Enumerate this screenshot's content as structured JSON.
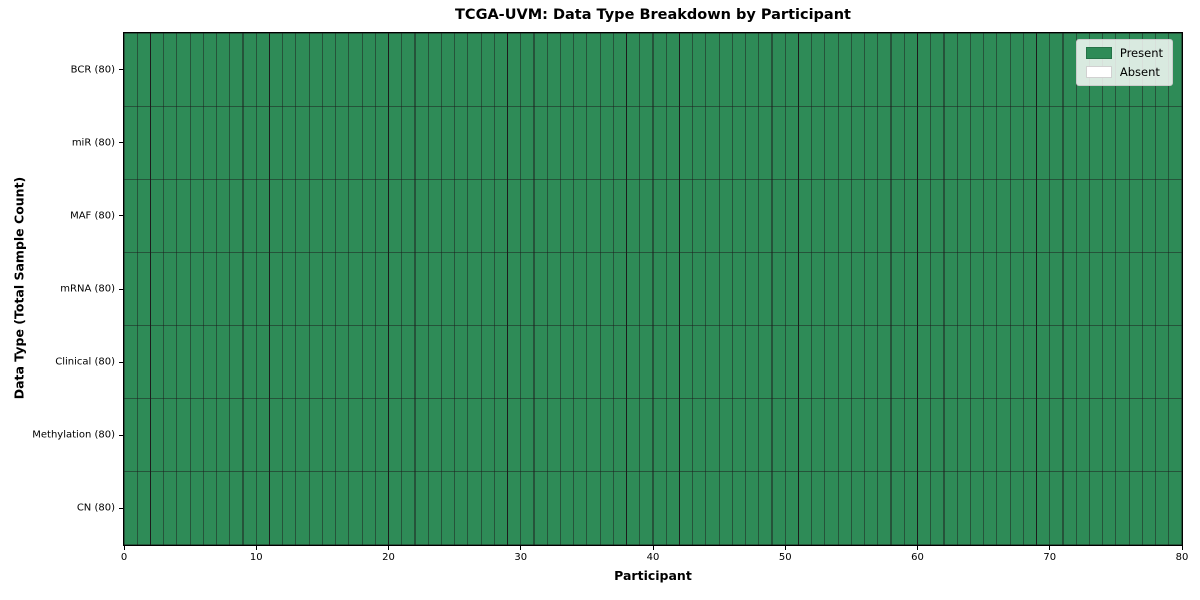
{
  "title": "TCGA-UVM: Data Type Breakdown by Participant",
  "chart_data": {
    "type": "heatmap",
    "title": "TCGA-UVM: Data Type Breakdown by Participant",
    "xlabel": "Participant",
    "ylabel": "Data Type (Total Sample Count)",
    "xlim": [
      0,
      80
    ],
    "x_ticks": [
      0,
      10,
      20,
      30,
      40,
      50,
      60,
      70,
      80
    ],
    "n_participants": 80,
    "rows": [
      {
        "label": "BCR (80)",
        "data_type": "BCR",
        "total_samples": 80,
        "present_count": 80
      },
      {
        "label": "miR (80)",
        "data_type": "miR",
        "total_samples": 80,
        "present_count": 80
      },
      {
        "label": "MAF (80)",
        "data_type": "MAF",
        "total_samples": 80,
        "present_count": 80
      },
      {
        "label": "mRNA (80)",
        "data_type": "mRNA",
        "total_samples": 80,
        "present_count": 80
      },
      {
        "label": "Clinical (80)",
        "data_type": "Clinical",
        "total_samples": 80,
        "present_count": 80
      },
      {
        "label": "Methylation (80)",
        "data_type": "Methylation",
        "total_samples": 80,
        "present_count": 80
      },
      {
        "label": "CN (80)",
        "data_type": "CN",
        "total_samples": 80,
        "present_count": 80
      }
    ],
    "legend": {
      "position": "upper right",
      "entries": [
        {
          "label": "Present",
          "color": "#2e8b57"
        },
        {
          "label": "Absent",
          "color": "#ffffff"
        }
      ]
    },
    "colors": {
      "present": "#2e8b57",
      "absent": "#ffffff",
      "cell_edge": "#1c1c1c",
      "spine": "#000000"
    },
    "grid": false
  }
}
